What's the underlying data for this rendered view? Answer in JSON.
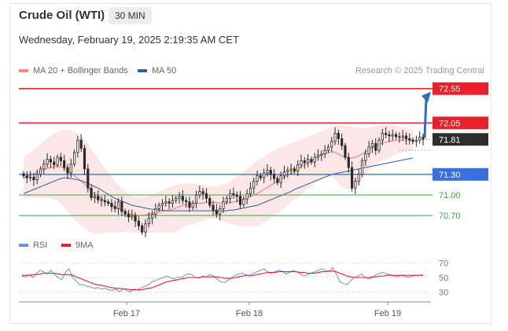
{
  "header": {
    "title": "Crude Oil (WTI)",
    "timeframe": "30 MIN",
    "datetime": "Wednesday, February 19, 2025 2:19:35 AM CET",
    "credit": "Research © 2025 Trading Central"
  },
  "legend": {
    "ma20": "MA 20 + Bollinger Bands",
    "ma50": "MA 50",
    "rsi": "RSI",
    "rsi_ma": "9MA"
  },
  "colors": {
    "resistance": "#e8202a",
    "support": "#3b6fe0",
    "minor": "#3aa843",
    "current": "#2d2d2d",
    "ma20": "#f08a8a",
    "band": "#fbdddd",
    "ma50": "#2f5f9e",
    "rsi": "#6d8fe6",
    "rsi_ma": "#e8202a",
    "candle": "#2a2a2a",
    "arrow": "#2f6fb5"
  },
  "chart_data": [
    {
      "type": "candlestick",
      "title": "Crude Oil (WTI)",
      "timeframe": "30 MIN",
      "x_ticks": [
        "Feb 17",
        "Feb 18",
        "Feb 19"
      ],
      "ylim": [
        70.45,
        72.65
      ],
      "levels": [
        {
          "value": 72.55,
          "label": "72.55",
          "kind": "resistance"
        },
        {
          "value": 72.05,
          "label": "72.05",
          "kind": "resistance"
        },
        {
          "value": 71.81,
          "label": "71.81",
          "kind": "current"
        },
        {
          "value": 71.3,
          "label": "71.30",
          "kind": "support"
        },
        {
          "value": 71.0,
          "label": "71.00",
          "kind": "minor"
        },
        {
          "value": 70.7,
          "label": "70.70",
          "kind": "minor"
        }
      ],
      "forecast_arrow": {
        "from": 71.81,
        "to": 72.55
      },
      "close": [
        71.28,
        71.25,
        71.26,
        71.22,
        71.3,
        71.38,
        71.45,
        71.52,
        71.48,
        71.44,
        71.55,
        71.5,
        71.4,
        71.32,
        71.45,
        71.62,
        71.8,
        71.68,
        71.38,
        71.1,
        70.96,
        70.98,
        70.93,
        70.92,
        70.9,
        70.88,
        70.83,
        70.8,
        70.9,
        70.76,
        70.72,
        70.68,
        70.7,
        70.62,
        70.55,
        70.46,
        70.58,
        70.66,
        70.72,
        70.8,
        70.85,
        70.88,
        70.9,
        70.88,
        70.92,
        70.95,
        70.98,
        70.92,
        70.9,
        70.82,
        70.88,
        71.0,
        71.05,
        71.02,
        70.95,
        70.85,
        70.78,
        70.72,
        70.8,
        70.9,
        70.95,
        71.02,
        71.0,
        70.98,
        70.86,
        70.94,
        71.02,
        71.1,
        71.2,
        71.28,
        71.25,
        71.32,
        71.36,
        71.3,
        71.24,
        71.18,
        71.28,
        71.34,
        71.36,
        71.38,
        71.35,
        71.44,
        71.5,
        71.47,
        71.52,
        71.48,
        71.55,
        71.58,
        71.6,
        71.65,
        71.7,
        71.78,
        71.9,
        71.82,
        71.72,
        71.55,
        71.4,
        71.1,
        71.2,
        71.3,
        71.5,
        71.6,
        71.7,
        71.75,
        71.65,
        71.8,
        71.9,
        71.88,
        71.86,
        71.88,
        71.85,
        71.84,
        71.86,
        71.82,
        71.8,
        71.78,
        71.8,
        71.84,
        71.81
      ],
      "ma20": [
        71.25,
        71.27,
        71.29,
        71.31,
        71.33,
        71.35,
        71.37,
        71.39,
        71.4,
        71.41,
        71.42,
        71.41,
        71.39,
        71.36,
        71.32,
        71.28,
        71.24,
        71.2,
        71.16,
        71.11,
        71.06,
        71.02,
        70.98,
        70.95,
        70.92,
        70.89,
        70.86,
        70.83,
        70.8,
        70.78,
        70.76,
        70.74,
        70.72,
        70.71,
        70.7,
        70.7,
        70.71,
        70.72,
        70.73,
        70.74,
        70.75,
        70.76,
        70.77,
        70.78,
        70.79,
        70.81,
        70.83,
        70.85,
        70.86,
        70.87,
        70.87,
        70.88,
        70.88,
        70.88,
        70.89,
        70.89,
        70.89,
        70.89,
        70.88,
        70.88,
        70.88,
        70.89,
        70.9,
        70.91,
        70.92,
        70.94,
        70.96,
        70.98,
        71.0,
        71.02,
        71.05,
        71.08,
        71.11,
        71.14,
        71.17,
        71.2,
        71.23,
        71.26,
        71.29,
        71.32,
        71.35,
        71.38,
        71.41,
        71.44,
        71.47,
        71.5,
        71.53,
        71.56,
        71.58,
        71.6,
        71.62,
        71.63,
        71.62,
        71.6,
        71.57,
        71.55,
        71.54,
        71.54,
        71.55,
        71.57,
        71.6,
        71.63,
        71.66,
        71.69,
        71.72,
        71.74,
        71.76,
        71.77,
        71.78,
        71.79,
        71.8,
        71.8,
        71.8,
        71.8,
        71.8,
        71.8
      ],
      "upper_band": [
        71.55,
        71.58,
        71.62,
        71.66,
        71.7,
        71.74,
        71.78,
        71.82,
        71.86,
        71.89,
        71.92,
        71.94,
        71.95,
        71.95,
        71.94,
        71.92,
        71.89,
        71.85,
        71.8,
        71.74,
        71.67,
        71.6,
        71.53,
        71.46,
        71.39,
        71.32,
        71.26,
        71.2,
        71.15,
        71.1,
        71.06,
        71.02,
        70.99,
        70.97,
        70.96,
        70.96,
        70.97,
        70.99,
        71.01,
        71.03,
        71.05,
        71.07,
        71.09,
        71.11,
        71.13,
        71.15,
        71.16,
        71.17,
        71.17,
        71.17,
        71.17,
        71.16,
        71.15,
        71.14,
        71.13,
        71.12,
        71.12,
        71.12,
        71.13,
        71.15,
        71.17,
        71.2,
        71.23,
        71.26,
        71.3,
        71.34,
        71.38,
        71.42,
        71.46,
        71.5,
        71.53,
        71.56,
        71.59,
        71.62,
        71.65,
        71.67,
        71.69,
        71.71,
        71.73,
        71.75,
        71.77,
        71.79,
        71.81,
        71.83,
        71.85,
        71.87,
        71.89,
        71.91,
        71.93,
        71.95,
        71.97,
        71.99,
        72.01,
        72.02,
        72.02,
        72.01,
        72.0,
        71.99,
        71.98,
        71.97,
        71.97,
        71.97,
        71.98,
        71.99,
        72.0,
        72.01,
        72.02,
        72.02,
        72.02,
        72.01,
        72.0,
        71.99,
        71.98,
        71.97,
        71.96,
        71.95
      ],
      "lower_band": [
        70.95,
        70.96,
        70.96,
        70.96,
        70.96,
        70.96,
        70.96,
        70.96,
        70.94,
        70.93,
        70.92,
        70.88,
        70.83,
        70.77,
        70.7,
        70.64,
        70.59,
        70.55,
        70.52,
        70.48,
        70.45,
        70.44,
        70.43,
        70.44,
        70.45,
        70.46,
        70.46,
        70.46,
        70.45,
        70.46,
        70.46,
        70.46,
        70.45,
        70.45,
        70.44,
        70.44,
        70.45,
        70.45,
        70.45,
        70.45,
        70.45,
        70.45,
        70.45,
        70.45,
        70.45,
        70.47,
        70.5,
        70.53,
        70.55,
        70.57,
        70.57,
        70.6,
        70.61,
        70.62,
        70.65,
        70.66,
        70.66,
        70.66,
        70.63,
        70.61,
        70.59,
        70.58,
        70.57,
        70.56,
        70.54,
        70.54,
        70.54,
        70.54,
        70.54,
        70.54,
        70.57,
        70.6,
        70.63,
        70.66,
        70.69,
        70.73,
        70.77,
        70.81,
        70.85,
        70.89,
        70.93,
        70.97,
        71.01,
        71.05,
        71.09,
        71.13,
        71.17,
        71.21,
        71.23,
        71.25,
        71.27,
        71.27,
        71.23,
        71.18,
        71.12,
        71.09,
        71.08,
        71.09,
        71.12,
        71.17,
        71.23,
        71.29,
        71.34,
        71.39,
        71.44,
        71.47,
        71.5,
        71.52,
        71.54,
        71.57,
        71.6,
        71.61,
        71.62,
        71.63,
        71.64,
        71.65
      ],
      "ma50": [
        71.02,
        71.04,
        71.06,
        71.08,
        71.1,
        71.12,
        71.14,
        71.16,
        71.18,
        71.2,
        71.22,
        71.24,
        71.25,
        71.25,
        71.24,
        71.23,
        71.22,
        71.21,
        71.19,
        71.17,
        71.15,
        71.12,
        71.1,
        71.07,
        71.04,
        71.01,
        70.98,
        70.95,
        70.93,
        70.91,
        70.89,
        70.87,
        70.85,
        70.84,
        70.83,
        70.82,
        70.81,
        70.8,
        70.79,
        70.79,
        70.78,
        70.78,
        70.77,
        70.77,
        70.77,
        70.77,
        70.77,
        70.77,
        70.77,
        70.77,
        70.77,
        70.77,
        70.77,
        70.77,
        70.77,
        70.77,
        70.77,
        70.77,
        70.77,
        70.77,
        70.77,
        70.78,
        70.78,
        70.79,
        70.8,
        70.81,
        70.82,
        70.83,
        70.84,
        70.85,
        70.87,
        70.89,
        70.91,
        70.93,
        70.95,
        70.97,
        70.99,
        71.01,
        71.03,
        71.05,
        71.08,
        71.1,
        71.12,
        71.14,
        71.16,
        71.18,
        71.2,
        71.22,
        71.24,
        71.26,
        71.28,
        71.3,
        71.31,
        71.32,
        71.33,
        71.34,
        71.35,
        71.36,
        71.37,
        71.38,
        71.39,
        71.4,
        71.41,
        71.42,
        71.43,
        71.44,
        71.45,
        71.46,
        71.47,
        71.48,
        71.49,
        71.5,
        71.51,
        71.52,
        71.53,
        71.54
      ]
    },
    {
      "type": "line",
      "title": "RSI",
      "ylim": [
        25,
        75
      ],
      "y_ticks": [
        70,
        50,
        30
      ],
      "series": [
        {
          "name": "RSI",
          "values": [
            52,
            51,
            54,
            50,
            56,
            60,
            58,
            55,
            60,
            54,
            50,
            47,
            57,
            62,
            50,
            45,
            40,
            40,
            38,
            37,
            35,
            36,
            34,
            35,
            33,
            32,
            34,
            30,
            35,
            32,
            30,
            34,
            33,
            36,
            38,
            40,
            44,
            46,
            48,
            50,
            52,
            50,
            48,
            51,
            50,
            53,
            55,
            54,
            50,
            49,
            52,
            51,
            54,
            52,
            48,
            44,
            43,
            46,
            50,
            53,
            55,
            56,
            54,
            52,
            56,
            58,
            60,
            62,
            58,
            56,
            58,
            60,
            59,
            55,
            57,
            60,
            58,
            55,
            52,
            54,
            56,
            58,
            60,
            62,
            60,
            58,
            64,
            55,
            44,
            42,
            40,
            46,
            50,
            52,
            55,
            50,
            48,
            50,
            54,
            56,
            57,
            55,
            54,
            52,
            51,
            53,
            52,
            50,
            52,
            53,
            53,
            54
          ]
        },
        {
          "name": "9MA",
          "values": [
            53,
            53,
            53,
            54,
            54,
            55,
            56,
            56,
            56,
            56,
            55,
            54,
            54,
            54,
            53,
            51,
            49,
            47,
            45,
            43,
            41,
            40,
            39,
            38,
            37,
            36,
            35,
            35,
            34,
            34,
            33,
            33,
            33,
            33,
            34,
            35,
            36,
            38,
            40,
            42,
            44,
            45,
            46,
            47,
            48,
            49,
            50,
            50,
            50,
            50,
            51,
            51,
            51,
            51,
            51,
            50,
            49,
            49,
            49,
            50,
            51,
            52,
            53,
            53,
            53,
            54,
            55,
            56,
            57,
            57,
            57,
            58,
            58,
            58,
            58,
            58,
            58,
            57,
            57,
            56,
            56,
            56,
            57,
            58,
            58,
            59,
            59,
            58,
            56,
            54,
            52,
            51,
            50,
            50,
            50,
            50,
            50,
            51,
            51,
            52,
            52,
            53,
            53,
            53,
            53,
            53,
            53,
            53,
            53,
            53,
            53,
            53
          ]
        }
      ]
    }
  ]
}
